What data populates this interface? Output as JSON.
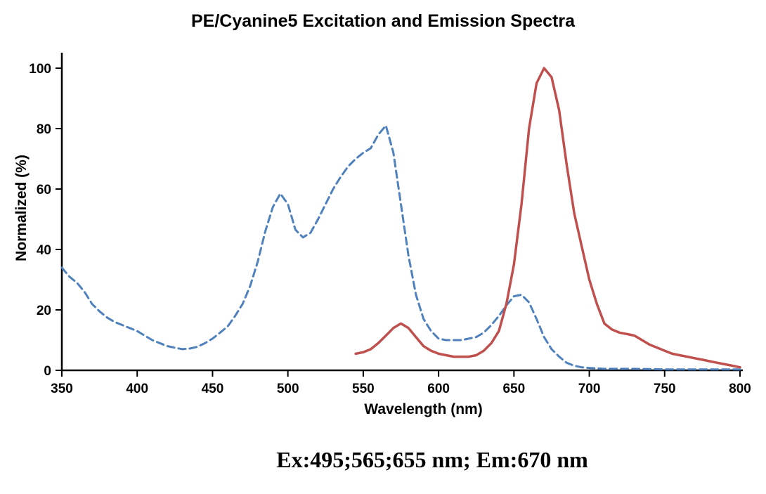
{
  "chart_data": {
    "type": "line",
    "title": "PE/Cyanine5 Excitation and Emission Spectra",
    "xlabel": "Wavelength (nm)",
    "ylabel": "Normalized (%)",
    "annotation": "Ex:495;565;655 nm; Em:670 nm",
    "xlim": [
      350,
      800
    ],
    "ylim": [
      0,
      100
    ],
    "xticks": [
      350,
      400,
      450,
      500,
      550,
      600,
      650,
      700,
      750,
      800
    ],
    "yticks": [
      0,
      20,
      40,
      60,
      80,
      100
    ],
    "grid": false,
    "legend": "none",
    "series": [
      {
        "name": "Excitation",
        "style": "dashed",
        "color": "#4f81bd",
        "x": [
          350,
          355,
          360,
          365,
          370,
          375,
          380,
          385,
          390,
          395,
          400,
          405,
          410,
          415,
          420,
          425,
          430,
          435,
          440,
          445,
          450,
          455,
          460,
          465,
          470,
          475,
          480,
          485,
          490,
          495,
          500,
          505,
          510,
          515,
          520,
          525,
          530,
          535,
          540,
          545,
          550,
          555,
          560,
          565,
          570,
          575,
          580,
          585,
          590,
          595,
          600,
          605,
          610,
          615,
          620,
          625,
          630,
          635,
          640,
          645,
          650,
          655,
          660,
          665,
          670,
          675,
          680,
          685,
          690,
          695,
          700,
          710,
          720,
          730,
          740,
          750,
          760,
          770,
          780,
          790,
          800
        ],
        "y": [
          34,
          31,
          29,
          26,
          22,
          19.5,
          17.5,
          16,
          15,
          14,
          13,
          11.5,
          10,
          9,
          8,
          7.5,
          7,
          7.2,
          7.8,
          9,
          10.5,
          12.5,
          14.5,
          18,
          22,
          28,
          36,
          46,
          54,
          58.5,
          55,
          46.5,
          44,
          45.5,
          50,
          55,
          60,
          64,
          67.5,
          70,
          72,
          73.5,
          78,
          81,
          72,
          55,
          38,
          25,
          17,
          13,
          10.5,
          10,
          10,
          10,
          10.5,
          11,
          12.5,
          15,
          18,
          21.5,
          24.5,
          25,
          22.5,
          17,
          11,
          7,
          4.5,
          2.5,
          1.5,
          1,
          0.8,
          0.5,
          0.5,
          0.5,
          0.4,
          0.3,
          0.3,
          0.3,
          0.3,
          0.3,
          0.3
        ]
      },
      {
        "name": "Emission",
        "style": "solid",
        "color": "#c0504d",
        "x": [
          545,
          550,
          555,
          560,
          565,
          570,
          575,
          580,
          585,
          590,
          595,
          600,
          605,
          610,
          615,
          620,
          625,
          630,
          635,
          640,
          645,
          650,
          655,
          660,
          665,
          670,
          675,
          680,
          685,
          690,
          695,
          700,
          705,
          710,
          715,
          720,
          725,
          730,
          735,
          740,
          745,
          750,
          755,
          760,
          765,
          770,
          775,
          780,
          785,
          790,
          795,
          800
        ],
        "y": [
          5.5,
          6,
          7,
          9,
          11.5,
          14,
          15.5,
          14,
          11,
          8,
          6.5,
          5.5,
          5,
          4.5,
          4.5,
          4.5,
          5,
          6.5,
          9,
          13,
          22,
          35,
          55,
          80,
          95,
          100,
          97,
          86,
          68,
          52,
          41,
          30,
          22,
          15.5,
          13.5,
          12.5,
          12,
          11.5,
          10,
          8.5,
          7.5,
          6.5,
          5.5,
          5,
          4.5,
          4,
          3.5,
          3,
          2.5,
          2,
          1.5,
          1
        ]
      }
    ]
  }
}
